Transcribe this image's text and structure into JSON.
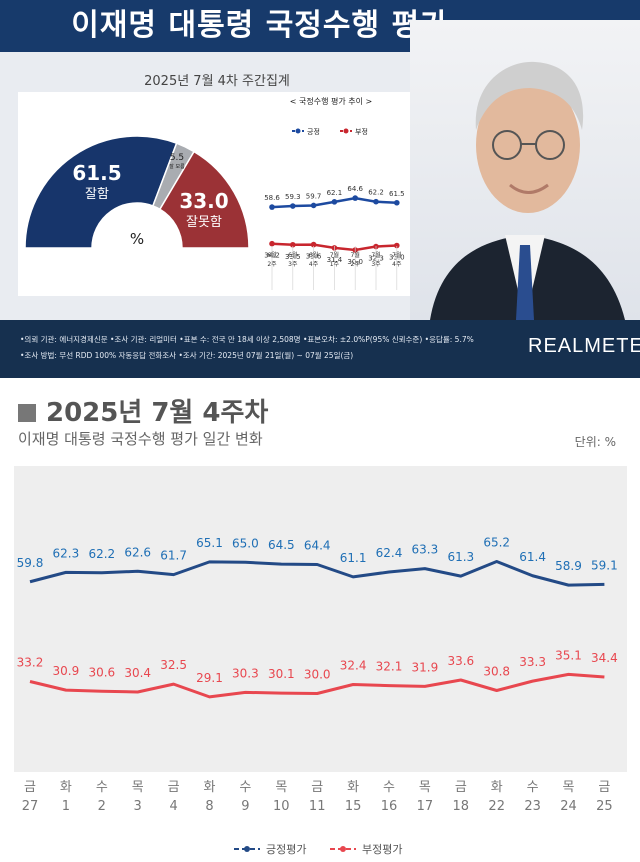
{
  "header": {
    "title": "이재명 대통령 국정수행 평가",
    "subtitle": "2025년 7월 4차 주간집계"
  },
  "gauge": {
    "approve_value": "61.5",
    "approve_label": "잘함",
    "disapprove_value": "33.0",
    "disapprove_label": "잘못함",
    "undecided_value": "5.5",
    "undecided_label": "잘 모름",
    "center_label": "%",
    "approve": 61.5,
    "undecided": 5.5,
    "disapprove": 33.0,
    "colors": {
      "approve": "#17356b",
      "undecided": "#a9acb1",
      "disapprove": "#9b3236"
    }
  },
  "trend": {
    "title": "< 국정수행 평가 추이 >",
    "legend_positive": "긍정",
    "legend_negative": "부정",
    "categories": [
      [
        "6월",
        "2주"
      ],
      [
        "6월",
        "3주"
      ],
      [
        "6월",
        "4주"
      ],
      [
        "7월",
        "1주"
      ],
      [
        "7월",
        "2주"
      ],
      [
        "7월",
        "3주"
      ],
      [
        "7월",
        "4주"
      ]
    ],
    "positive": [
      58.6,
      59.3,
      59.7,
      62.1,
      64.6,
      62.2,
      61.5
    ],
    "negative": [
      34.2,
      33.5,
      33.6,
      31.4,
      30.0,
      32.3,
      33.0
    ],
    "positive_labels": [
      "58.6",
      "59.3",
      "59.7",
      "62.1",
      "64.6",
      "62.2",
      "61.5"
    ],
    "negative_labels": [
      "34.2",
      "33.5",
      "33.6",
      "31.4",
      "30.0",
      "32.3",
      "33.0"
    ],
    "colors": {
      "positive": "#1d4aa0",
      "negative": "#c8262e"
    }
  },
  "info": {
    "line1": "•의뢰 기관: 에너지경제신문 •조사 기관: 리얼미터 •표본 수: 전국 만 18세 이상 2,508명 •표본오차: ±2.0%P(95% 신뢰수준) •응답률: 5.7%",
    "line2": "•조사 방법: 무선 RDD 100% 자동응답 전화조사 •조사 기간: 2025년 07월 21일(월) ~ 07월 25일(금)",
    "brand": "REALMETER"
  },
  "daily": {
    "week_title": "2025년 7월 4주차",
    "subtitle": "이재명 대통령 국정수행 평가 일간 변화",
    "unit": "단위: %"
  },
  "chart_data": {
    "type": "line",
    "title": "이재명 대통령 국정수행 평가 일간 변화",
    "unit": "단위: %",
    "categories": [
      {
        "day": "금",
        "date": "27"
      },
      {
        "day": "화",
        "date": "1"
      },
      {
        "day": "수",
        "date": "2"
      },
      {
        "day": "목",
        "date": "3"
      },
      {
        "day": "금",
        "date": "4"
      },
      {
        "day": "화",
        "date": "8"
      },
      {
        "day": "수",
        "date": "9"
      },
      {
        "day": "목",
        "date": "10"
      },
      {
        "day": "금",
        "date": "11"
      },
      {
        "day": "화",
        "date": "15"
      },
      {
        "day": "수",
        "date": "16"
      },
      {
        "day": "목",
        "date": "17"
      },
      {
        "day": "금",
        "date": "18"
      },
      {
        "day": "화",
        "date": "22"
      },
      {
        "day": "수",
        "date": "23"
      },
      {
        "day": "목",
        "date": "24"
      },
      {
        "day": "금",
        "date": "25"
      }
    ],
    "series": [
      {
        "name": "긍정평가",
        "color": "#234a86",
        "label_color": "#1f6fb5",
        "values": [
          59.8,
          62.3,
          62.2,
          62.6,
          61.7,
          65.1,
          65.0,
          64.5,
          64.4,
          61.1,
          62.4,
          63.3,
          61.3,
          65.2,
          61.4,
          58.9,
          59.1
        ],
        "labels": [
          "59.8",
          "62.3",
          "62.2",
          "62.6",
          "61.7",
          "65.1",
          "65.0",
          "64.5",
          "64.4",
          "61.1",
          "62.4",
          "63.3",
          "61.3",
          "65.2",
          "61.4",
          "58.9",
          "59.1"
        ]
      },
      {
        "name": "부정평가",
        "color": "#e8474f",
        "label_color": "#e8474f",
        "values": [
          33.2,
          30.9,
          30.6,
          30.4,
          32.5,
          29.1,
          30.3,
          30.1,
          30.0,
          32.4,
          32.1,
          31.9,
          33.6,
          30.8,
          33.3,
          35.1,
          34.4
        ],
        "labels": [
          "33.2",
          "30.9",
          "30.6",
          "30.4",
          "32.5",
          "29.1",
          "30.3",
          "30.1",
          "30.0",
          "32.4",
          "32.1",
          "31.9",
          "33.6",
          "30.8",
          "33.3",
          "35.1",
          "34.4"
        ]
      }
    ],
    "legend_position": "bottom-right"
  }
}
